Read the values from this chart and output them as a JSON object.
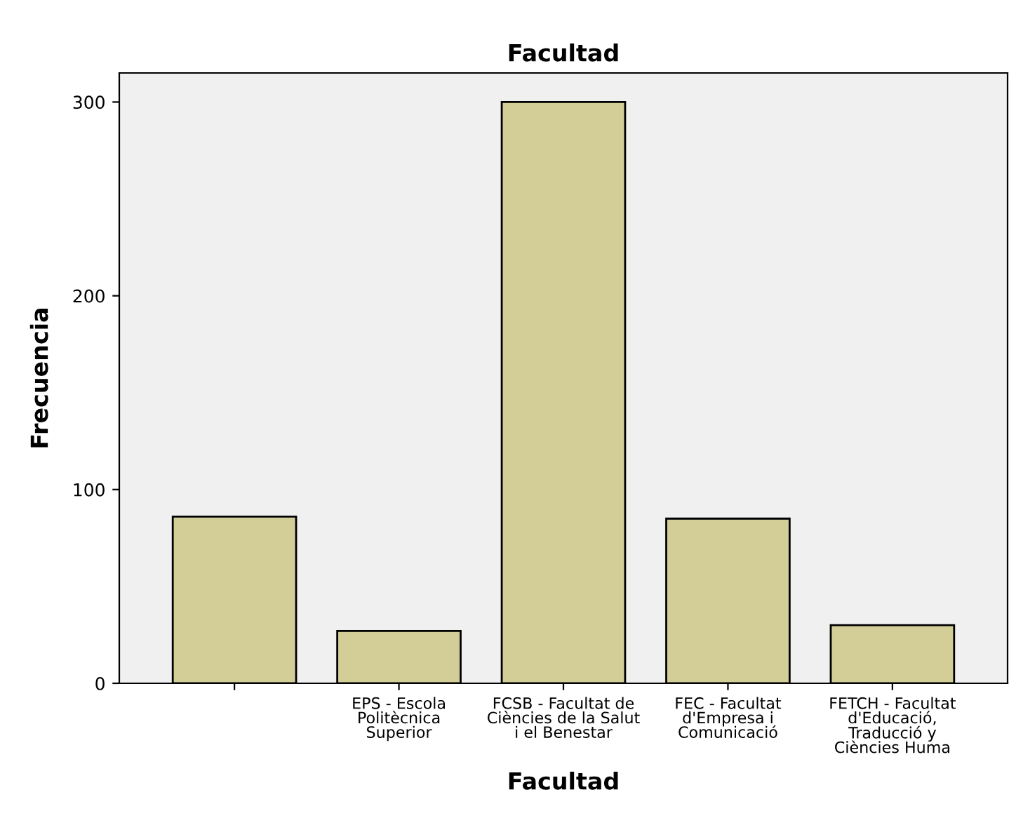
{
  "chart_data": {
    "type": "bar",
    "title": "Facultad",
    "xlabel": "Facultad",
    "ylabel": "Frecuencia",
    "categories": [
      null,
      "EPS - Escola\nPolitècnica\nSuperior",
      "FCSB - Facultat de\nCiències de la Salut\ni el Benestar",
      "FEC - Facultat\nd'Empresa i\nComunicació",
      "FETCH - Facultat\nd'Educació,\nTraducció y\nCiències Huma"
    ],
    "values": [
      86,
      27,
      300,
      85,
      30
    ],
    "color": "#d3ce98",
    "ylim": [
      0,
      315
    ],
    "yticks": [
      0,
      100,
      200,
      300
    ],
    "grid": false,
    "legend": false
  }
}
